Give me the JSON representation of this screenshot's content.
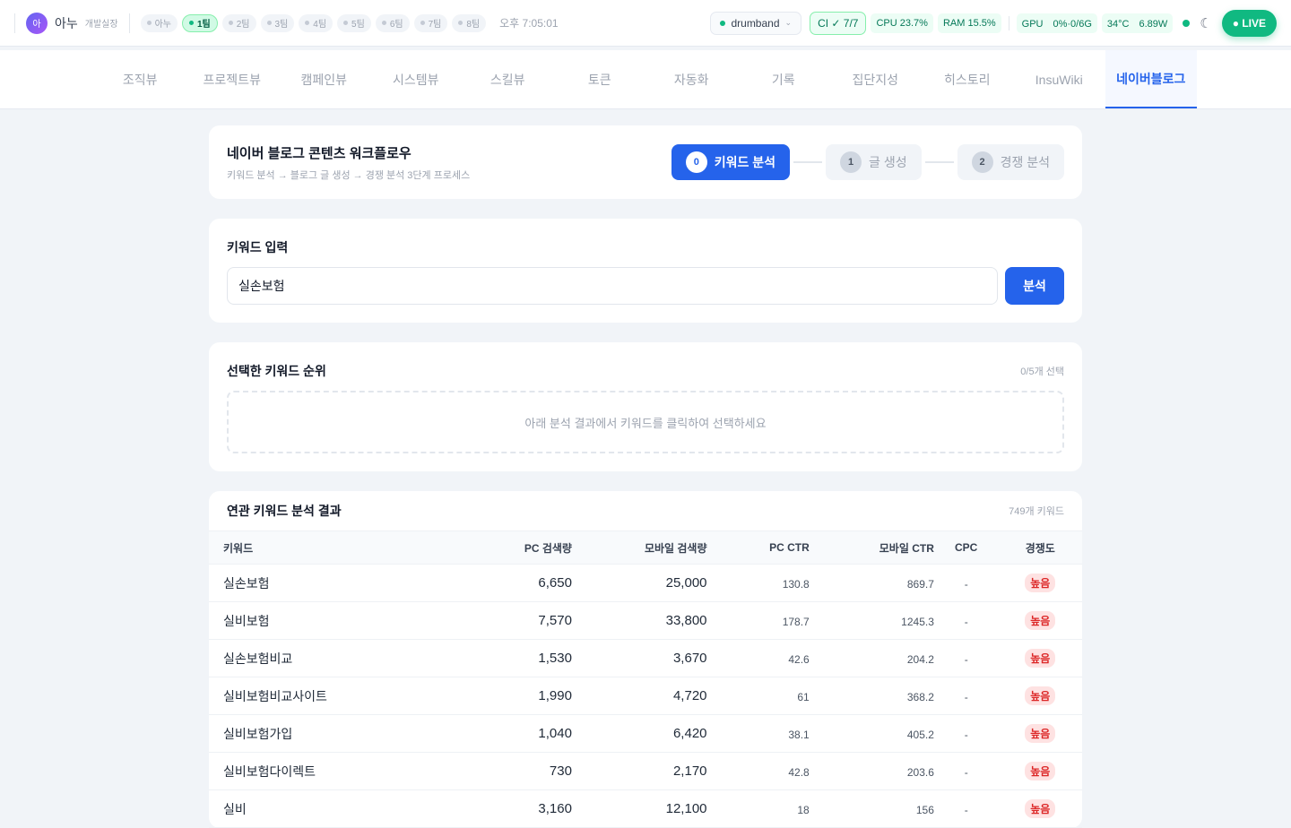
{
  "header": {
    "avatar": "아",
    "user": "아누",
    "role": "개발실장",
    "teams": [
      "아누",
      "1팀",
      "2팀",
      "3팀",
      "4팀",
      "5팀",
      "6팀",
      "7팀",
      "8팀"
    ],
    "active_team": "1팀",
    "time": "오후 7:05:01",
    "project": "drumband",
    "ci": "CI ✓ 7/7",
    "cpu": "CPU 23.7%",
    "ram": "RAM 15.5%",
    "gpu": "GPU　0%·0/6G",
    "temp": "34°C　6.89W",
    "live": "● LIVE"
  },
  "nav": {
    "tabs": [
      "조직뷰",
      "프로젝트뷰",
      "캠페인뷰",
      "시스템뷰",
      "스킬뷰",
      "토큰",
      "자동화",
      "기록",
      "집단지성",
      "히스토리",
      "InsuWiki",
      "네이버블로그"
    ],
    "active": "네이버블로그"
  },
  "workflow": {
    "title": "네이버 블로그 콘텐츠 워크플로우",
    "subtitle": "키워드 분석 → 블로그 글 생성 → 경쟁 분석 3단계 프로세스",
    "steps": [
      {
        "n": "0",
        "label": "키워드 분석"
      },
      {
        "n": "1",
        "label": "글 생성"
      },
      {
        "n": "2",
        "label": "경쟁 분석"
      }
    ]
  },
  "keyword_input": {
    "title": "키워드 입력",
    "value": "실손보험",
    "button": "분석"
  },
  "selected": {
    "title": "선택한 키워드 순위",
    "count": "0/5개 선택",
    "empty": "아래 분석 결과에서 키워드를 클릭하여 선택하세요"
  },
  "results": {
    "title": "연관 키워드 분석 결과",
    "count": "749개 키워드",
    "columns": [
      "키워드",
      "PC 검색량",
      "모바일 검색량",
      "PC CTR",
      "모바일 CTR",
      "CPC",
      "경쟁도"
    ],
    "rows": [
      [
        "실손보험",
        "6,650",
        "25,000",
        "130.8",
        "869.7",
        "-",
        "높음"
      ],
      [
        "실비보험",
        "7,570",
        "33,800",
        "178.7",
        "1245.3",
        "-",
        "높음"
      ],
      [
        "실손보험비교",
        "1,530",
        "3,670",
        "42.6",
        "204.2",
        "-",
        "높음"
      ],
      [
        "실비보험비교사이트",
        "1,990",
        "4,720",
        "61",
        "368.2",
        "-",
        "높음"
      ],
      [
        "실비보험가입",
        "1,040",
        "6,420",
        "38.1",
        "405.2",
        "-",
        "높음"
      ],
      [
        "실비보험다이렉트",
        "730",
        "2,170",
        "42.8",
        "203.6",
        "-",
        "높음"
      ],
      [
        "실비",
        "3,160",
        "12,100",
        "18",
        "156",
        "-",
        "높음"
      ]
    ]
  }
}
